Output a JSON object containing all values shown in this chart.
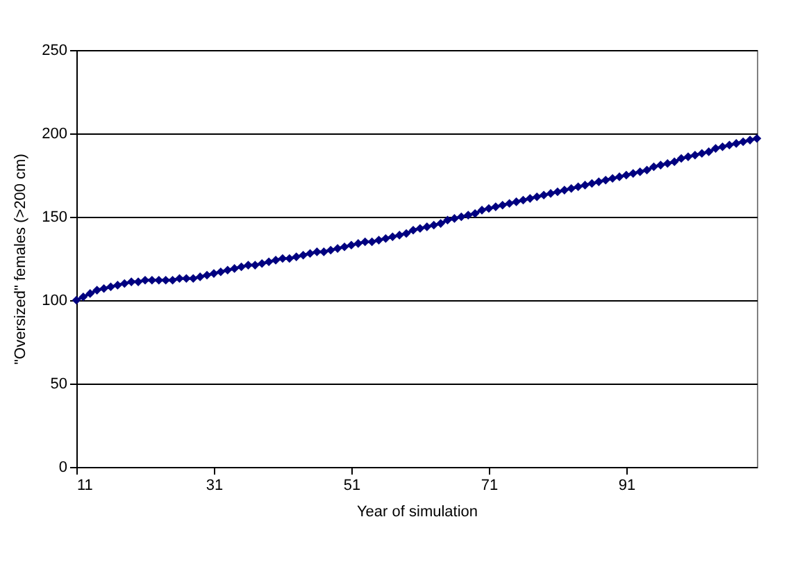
{
  "chart_data": {
    "type": "line",
    "xlabel": "Year of simulation",
    "ylabel": "\"Oversized\" females (>200 cm)",
    "x": [
      11,
      12,
      13,
      14,
      15,
      16,
      17,
      18,
      19,
      20,
      21,
      22,
      23,
      24,
      25,
      26,
      27,
      28,
      29,
      30,
      31,
      32,
      33,
      34,
      35,
      36,
      37,
      38,
      39,
      40,
      41,
      42,
      43,
      44,
      45,
      46,
      47,
      48,
      49,
      50,
      51,
      52,
      53,
      54,
      55,
      56,
      57,
      58,
      59,
      60,
      61,
      62,
      63,
      64,
      65,
      66,
      67,
      68,
      69,
      70,
      71,
      72,
      73,
      74,
      75,
      76,
      77,
      78,
      79,
      80,
      81,
      82,
      83,
      84,
      85,
      86,
      87,
      88,
      89,
      90,
      91,
      92,
      93,
      94,
      95,
      96,
      97,
      98,
      99,
      100,
      101,
      102,
      103,
      104,
      105,
      106,
      107,
      108,
      109,
      110
    ],
    "series": [
      {
        "color": "#000080",
        "values": [
          100,
          102,
          104,
          106,
          107,
          108,
          109,
          110,
          111,
          111,
          112,
          112,
          112,
          112,
          112,
          113,
          113,
          113,
          114,
          115,
          116,
          117,
          118,
          119,
          120,
          121,
          121,
          122,
          123,
          124,
          125,
          125,
          126,
          127,
          128,
          129,
          129,
          130,
          131,
          132,
          133,
          134,
          135,
          135,
          136,
          137,
          138,
          139,
          140,
          142,
          143,
          144,
          145,
          146,
          148,
          149,
          150,
          151,
          152,
          154,
          155,
          156,
          157,
          158,
          159,
          160,
          161,
          162,
          163,
          164,
          165,
          166,
          167,
          168,
          169,
          170,
          171,
          172,
          173,
          174,
          175,
          176,
          177,
          178,
          180,
          181,
          182,
          183,
          185,
          186,
          187,
          188,
          189,
          191,
          192,
          193,
          194,
          195,
          196,
          197
        ]
      }
    ],
    "xlim": [
      11,
      110
    ],
    "xticks": [
      11,
      31,
      51,
      71,
      91
    ],
    "ylim": [
      0,
      250
    ],
    "yticks": [
      0,
      50,
      100,
      150,
      200,
      250
    ],
    "grid": "y",
    "marker": "diamond",
    "legend": false
  }
}
